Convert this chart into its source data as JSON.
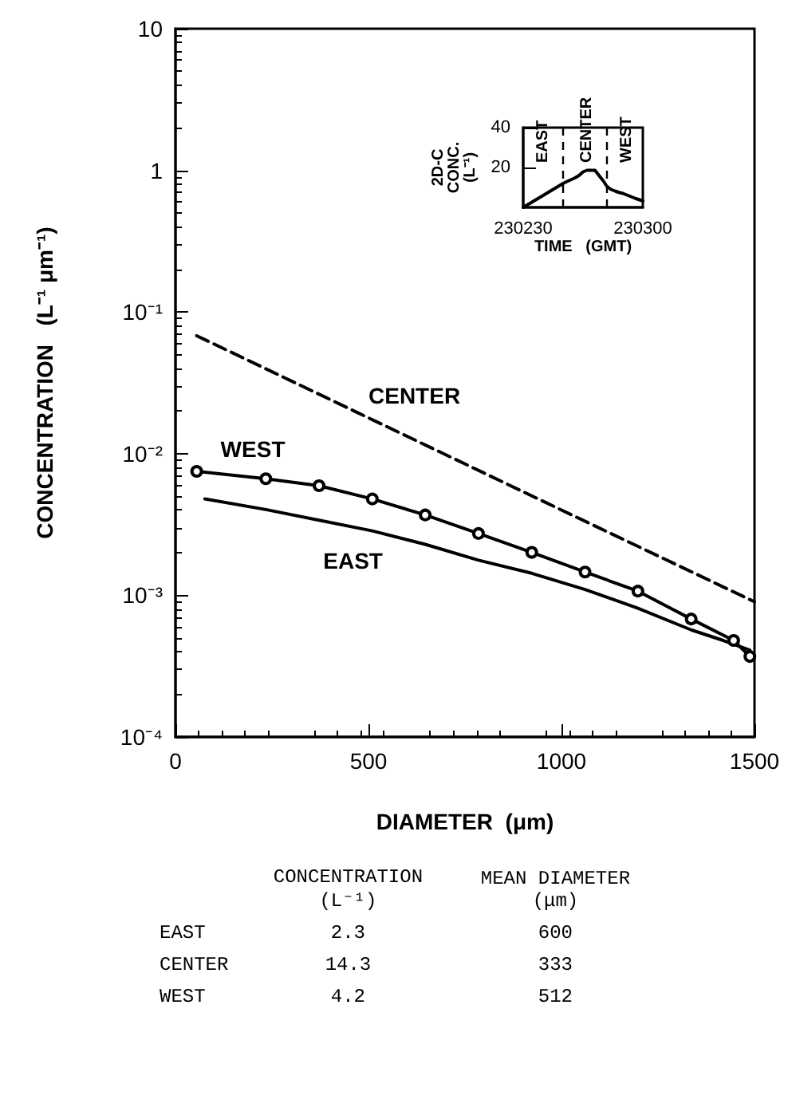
{
  "chart_data": [
    {
      "type": "line",
      "xlabel": "DIAMETER  (μm)",
      "ylabel": "CONCENTRATION   (L⁻¹ μm⁻¹)",
      "log": "y",
      "grid": false,
      "legend": false,
      "xlim": [
        0,
        1500
      ],
      "xticks": [
        0,
        500,
        1000,
        1500
      ],
      "ylim": [
        0.0001,
        10
      ],
      "yticks": [
        {
          "value": 0.0001,
          "label": "10⁻⁴"
        },
        {
          "value": 0.001,
          "label": "10⁻³"
        },
        {
          "value": 0.01,
          "label": "10⁻²"
        },
        {
          "value": 0.1,
          "label": "10⁻¹"
        },
        1,
        10
      ],
      "series": [
        {
          "name": "CENTER",
          "color": "#000000",
          "line_style": "dashed",
          "marker": "none",
          "x": [
            55,
            500,
            1000,
            1500
          ],
          "values": [
            0.068,
            0.0179,
            0.004,
            0.0009
          ]
        },
        {
          "name": "WEST",
          "color": "#000000",
          "line_style": "solid",
          "marker": "circle",
          "x": [
            55,
            234,
            372,
            510,
            647,
            785,
            923,
            1061,
            1198,
            1336,
            1446,
            1488
          ],
          "values": [
            0.0075,
            0.00665,
            0.00594,
            0.00479,
            0.00369,
            0.00273,
            0.00201,
            0.00146,
            0.00107,
            0.00068,
            0.00048,
            0.00037
          ]
        },
        {
          "name": "EAST",
          "color": "#000000",
          "line_style": "solid",
          "marker": "none",
          "x": [
            76,
            234,
            372,
            510,
            647,
            785,
            923,
            1061,
            1198,
            1336,
            1419,
            1488
          ],
          "values": [
            0.0048,
            0.00403,
            0.00339,
            0.00285,
            0.00229,
            0.00177,
            0.00143,
            0.0011,
            0.00081,
            0.00057,
            0.00048,
            0.00041
          ]
        }
      ]
    },
    {
      "type": "line",
      "xlabel": "TIME   (GMT)",
      "ylabel": "2D-C CONC. (L⁻¹)",
      "grid": false,
      "legend": false,
      "marker": "none",
      "line_style": "solid",
      "categories": [
        "230230",
        null,
        null,
        null,
        null,
        null,
        null,
        null,
        null,
        null,
        null,
        null,
        null,
        null,
        null,
        null,
        null,
        null,
        null,
        null,
        null,
        null,
        null,
        null,
        null,
        null,
        null,
        null,
        null,
        null,
        "230300"
      ],
      "ylim": [
        0,
        40
      ],
      "yticks": [
        20,
        40
      ],
      "values": [
        0,
        1.2,
        2.4,
        3.6,
        4.8,
        6,
        7.2,
        8.4,
        9.6,
        10.8,
        12,
        13,
        13.9,
        14.8,
        16,
        17.8,
        18.6,
        18.6,
        18.6,
        16,
        13.5,
        10.5,
        9,
        8.2,
        7.5,
        7,
        6.2,
        5.4,
        4.6,
        3.9,
        3.2
      ],
      "color": "#000000",
      "annotations": [
        "EAST",
        "CENTER",
        "WEST"
      ]
    },
    {
      "type": "other",
      "data_labels": true,
      "categories": [
        "EAST",
        "CENTER",
        "WEST"
      ],
      "series": [
        {
          "name": "CONCENTRATION (L⁻¹)",
          "values": [
            2.3,
            14.3,
            4.2
          ]
        },
        {
          "name": "MEAN DIAMETER (μm)",
          "values": [
            600,
            333,
            512
          ]
        }
      ]
    }
  ]
}
